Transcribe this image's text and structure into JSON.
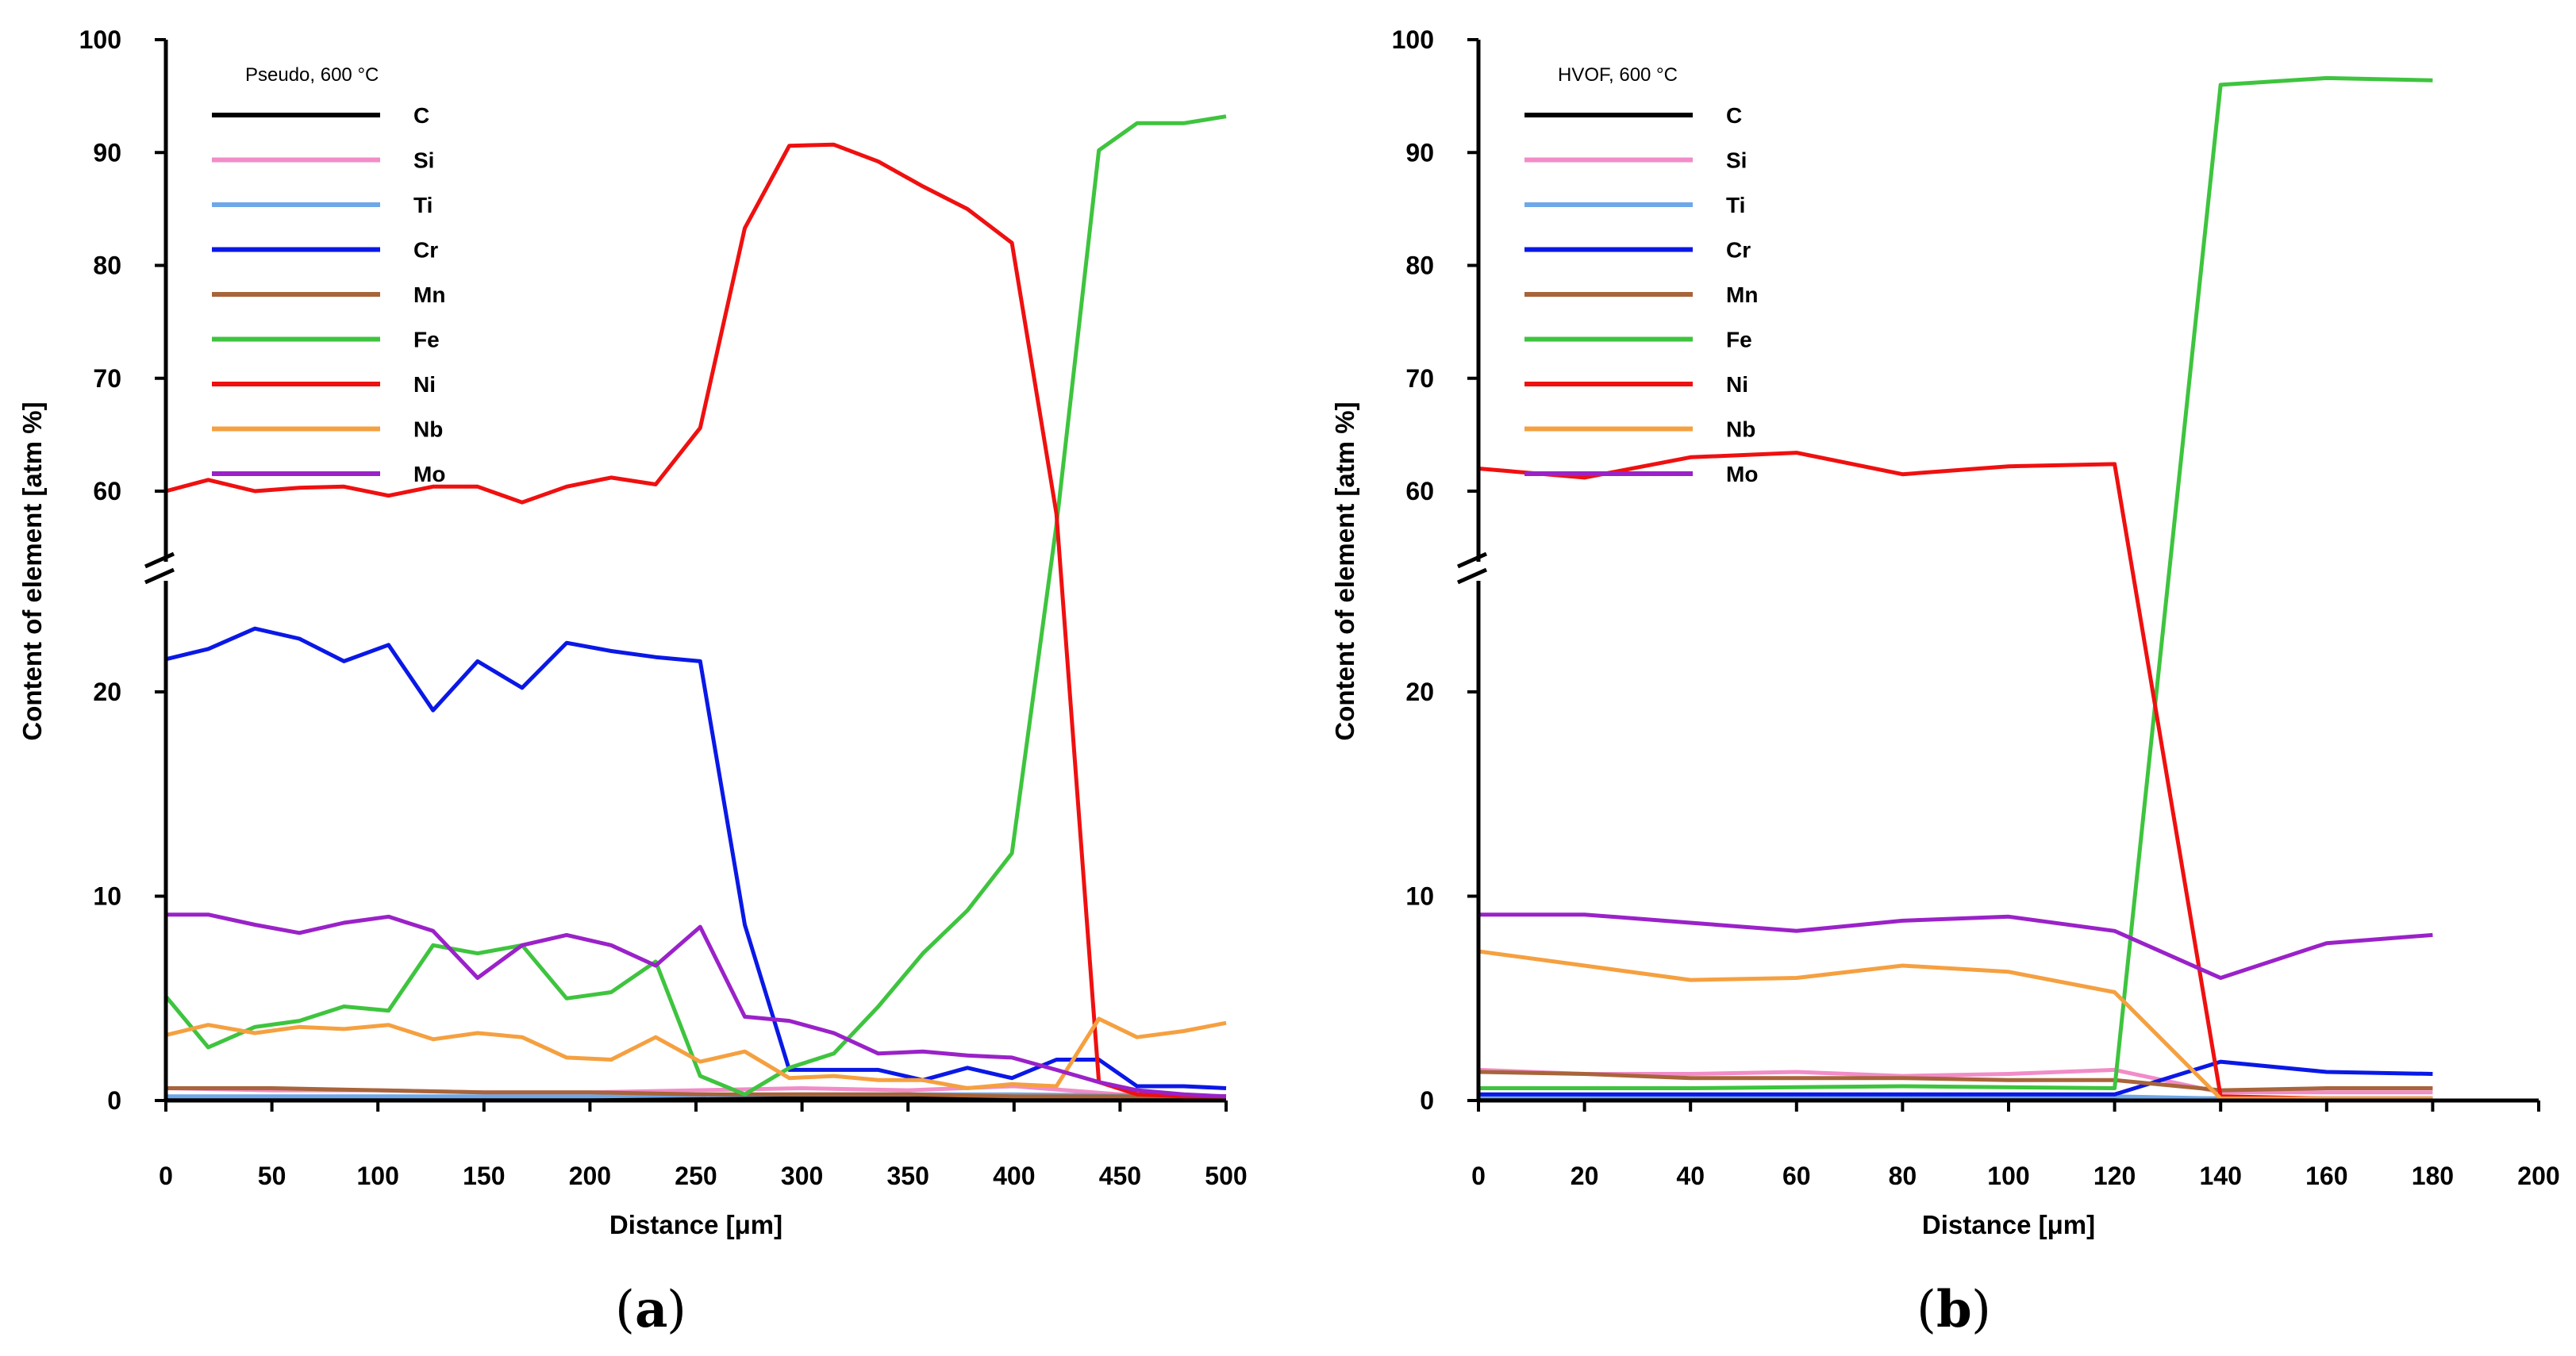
{
  "chart_data": [
    {
      "type": "line",
      "panel": "a",
      "title": "Pseudo, 600 °C",
      "xlabel": "Distance [μm]",
      "ylabel": "Content of element [atm %]",
      "xlim": [
        0,
        500
      ],
      "ylim": [
        0,
        100
      ],
      "axis_break": [
        25,
        57
      ],
      "xticks": [
        0,
        50,
        100,
        150,
        200,
        250,
        300,
        350,
        400,
        450,
        500
      ],
      "yticks": [
        0,
        10,
        20,
        60,
        70,
        80,
        90,
        100
      ],
      "grid": false,
      "legend_position": "top-left",
      "series": [
        {
          "name": "C",
          "color": "#000000",
          "x": [
            0,
            100,
            200,
            300,
            400,
            500
          ],
          "y": [
            0.1,
            0.1,
            0.1,
            0.1,
            0.1,
            0.1
          ]
        },
        {
          "name": "Si",
          "color": "#f28cc8",
          "x": [
            0,
            50,
            100,
            150,
            200,
            250,
            300,
            350,
            400,
            450,
            500
          ],
          "y": [
            0.6,
            0.5,
            0.5,
            0.4,
            0.4,
            0.5,
            0.6,
            0.5,
            0.7,
            0.3,
            0.2
          ]
        },
        {
          "name": "Ti",
          "color": "#6fa8e8",
          "x": [
            0,
            100,
            200,
            300,
            400,
            500
          ],
          "y": [
            0.2,
            0.2,
            0.2,
            0.3,
            0.3,
            0.2
          ]
        },
        {
          "name": "Cr",
          "color": "#0a18e6",
          "x": [
            0,
            20,
            42,
            63,
            84,
            105,
            126,
            147,
            168,
            189,
            210,
            231,
            252,
            273,
            294,
            315,
            336,
            357,
            378,
            399,
            420,
            440,
            458,
            480,
            500
          ],
          "y": [
            21.6,
            22.1,
            23.1,
            22.6,
            21.5,
            22.3,
            19.1,
            21.5,
            20.2,
            22.4,
            22.0,
            21.7,
            21.5,
            8.6,
            1.5,
            1.5,
            1.5,
            1.0,
            1.6,
            1.1,
            2.0,
            2.0,
            0.7,
            0.7,
            0.6
          ]
        },
        {
          "name": "Mn",
          "color": "#a8643a",
          "x": [
            0,
            50,
            100,
            150,
            200,
            250,
            300,
            350,
            400,
            450,
            500
          ],
          "y": [
            0.6,
            0.6,
            0.5,
            0.4,
            0.4,
            0.3,
            0.3,
            0.3,
            0.2,
            0.2,
            0.2
          ]
        },
        {
          "name": "Fe",
          "color": "#3ec43e",
          "x": [
            0,
            20,
            42,
            63,
            84,
            105,
            126,
            147,
            168,
            189,
            210,
            231,
            252,
            273,
            294,
            315,
            336,
            357,
            378,
            399,
            420,
            440,
            458,
            480,
            500
          ],
          "y": [
            5.1,
            2.6,
            3.6,
            3.9,
            4.6,
            4.4,
            7.6,
            7.2,
            7.6,
            5.0,
            5.3,
            6.8,
            1.2,
            0.3,
            1.6,
            2.3,
            4.6,
            7.2,
            9.3,
            12.1,
            57,
            90.2,
            92.6,
            92.6,
            93.2
          ]
        },
        {
          "name": "Ni",
          "color": "#ef1010",
          "x": [
            0,
            20,
            42,
            63,
            84,
            105,
            126,
            147,
            168,
            189,
            210,
            231,
            252,
            273,
            294,
            315,
            336,
            357,
            378,
            399,
            420,
            440,
            458,
            480,
            500
          ],
          "y": [
            60.0,
            61.0,
            60.0,
            60.3,
            60.4,
            59.6,
            60.4,
            60.4,
            59.0,
            60.4,
            61.2,
            60.6,
            65.6,
            83.3,
            90.6,
            90.7,
            89.2,
            87.0,
            85.0,
            82.0,
            58,
            0.9,
            0.3,
            0.2,
            0.2
          ]
        },
        {
          "name": "Nb",
          "color": "#f5a040",
          "x": [
            0,
            20,
            42,
            63,
            84,
            105,
            126,
            147,
            168,
            189,
            210,
            231,
            252,
            273,
            294,
            315,
            336,
            357,
            378,
            399,
            420,
            440,
            458,
            480,
            500
          ],
          "y": [
            3.2,
            3.7,
            3.3,
            3.6,
            3.5,
            3.7,
            3.0,
            3.3,
            3.1,
            2.1,
            2.0,
            3.1,
            1.9,
            2.4,
            1.1,
            1.2,
            1.0,
            1.0,
            0.6,
            0.8,
            0.7,
            4.0,
            3.1,
            3.4,
            3.8
          ]
        },
        {
          "name": "Mo",
          "color": "#9a22c8",
          "x": [
            0,
            20,
            42,
            63,
            84,
            105,
            126,
            147,
            168,
            189,
            210,
            231,
            252,
            273,
            294,
            315,
            336,
            357,
            378,
            399,
            420,
            440,
            458,
            480,
            500
          ],
          "y": [
            9.1,
            9.1,
            8.6,
            8.2,
            8.7,
            9.0,
            8.3,
            6.0,
            7.6,
            8.1,
            7.6,
            6.6,
            8.5,
            4.1,
            3.9,
            3.3,
            2.3,
            2.4,
            2.2,
            2.1,
            1.5,
            0.9,
            0.5,
            0.3,
            0.2
          ]
        }
      ]
    },
    {
      "type": "line",
      "panel": "b",
      "title": "HVOF, 600 °C",
      "xlabel": "Distance [μm]",
      "ylabel": "Content of element [atm %]",
      "xlim": [
        0,
        200
      ],
      "ylim": [
        0,
        100
      ],
      "axis_break": [
        25,
        57
      ],
      "xticks": [
        0,
        20,
        40,
        60,
        80,
        100,
        120,
        140,
        160,
        180,
        200
      ],
      "yticks": [
        0,
        10,
        20,
        60,
        70,
        80,
        90,
        100
      ],
      "grid": false,
      "legend_position": "top-left",
      "series": [
        {
          "name": "C",
          "color": "#000000",
          "x": [
            0,
            40,
            80,
            120,
            140,
            180
          ],
          "y": [
            0.1,
            0.1,
            0.1,
            0.1,
            0.1,
            0.1
          ]
        },
        {
          "name": "Si",
          "color": "#f28cc8",
          "x": [
            0,
            20,
            40,
            60,
            80,
            100,
            120,
            140,
            160,
            180
          ],
          "y": [
            1.5,
            1.3,
            1.3,
            1.4,
            1.2,
            1.3,
            1.5,
            0.4,
            0.4,
            0.4
          ]
        },
        {
          "name": "Ti",
          "color": "#6fa8e8",
          "x": [
            0,
            40,
            80,
            120,
            140,
            180
          ],
          "y": [
            0.2,
            0.2,
            0.2,
            0.2,
            0.1,
            0.1
          ]
        },
        {
          "name": "Cr",
          "color": "#0a18e6",
          "x": [
            0,
            40,
            80,
            120,
            140,
            160,
            180
          ],
          "y": [
            0.3,
            0.3,
            0.3,
            0.3,
            1.9,
            1.4,
            1.3
          ]
        },
        {
          "name": "Mn",
          "color": "#a8643a",
          "x": [
            0,
            20,
            40,
            60,
            80,
            100,
            120,
            140,
            160,
            180
          ],
          "y": [
            1.4,
            1.3,
            1.1,
            1.1,
            1.1,
            1.0,
            1.0,
            0.5,
            0.6,
            0.6
          ]
        },
        {
          "name": "Fe",
          "color": "#3ec43e",
          "x": [
            0,
            40,
            80,
            120,
            140,
            160,
            180
          ],
          "y": [
            0.6,
            0.6,
            0.7,
            0.6,
            96.0,
            96.6,
            96.4
          ]
        },
        {
          "name": "Ni",
          "color": "#ef1010",
          "x": [
            0,
            20,
            40,
            60,
            80,
            100,
            120,
            140,
            160,
            180
          ],
          "y": [
            62.0,
            61.2,
            63.0,
            63.4,
            61.5,
            62.2,
            62.4,
            0.2,
            0.1,
            0.1
          ]
        },
        {
          "name": "Nb",
          "color": "#f5a040",
          "x": [
            0,
            20,
            40,
            60,
            80,
            100,
            120,
            140,
            160,
            180
          ],
          "y": [
            7.3,
            6.6,
            5.9,
            6.0,
            6.6,
            6.3,
            5.3,
            0.1,
            0.1,
            0.1
          ]
        },
        {
          "name": "Mo",
          "color": "#9a22c8",
          "x": [
            0,
            20,
            40,
            60,
            80,
            100,
            120,
            140,
            160,
            180
          ],
          "y": [
            9.1,
            9.1,
            8.7,
            8.3,
            8.8,
            9.0,
            8.3,
            6.0,
            7.7,
            8.1
          ]
        }
      ]
    }
  ],
  "panels": {
    "a": {
      "open": "(",
      "letter": "a",
      "close": ")"
    },
    "b": {
      "open": "(",
      "letter": "b",
      "close": ")"
    }
  }
}
